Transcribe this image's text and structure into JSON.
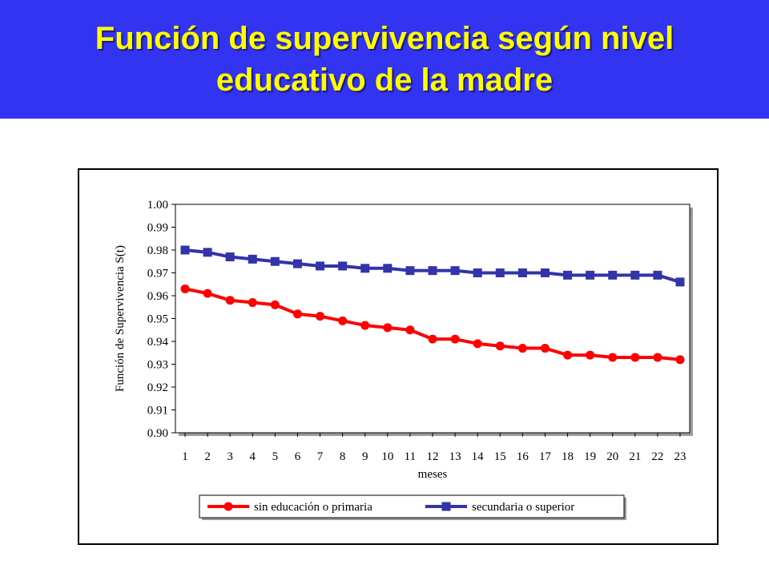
{
  "slide": {
    "title_line1": "Función de supervivencia según nivel",
    "title_line2": "educativo de la madre"
  },
  "colors": {
    "title_band": "#3333f2",
    "title_text": "#ffff00",
    "plot_area": "#ffffff",
    "series_red": "#ff0000",
    "series_blue": "#3333aa"
  },
  "chart_data": {
    "type": "line",
    "title": "",
    "xlabel": "meses",
    "ylabel": "Función de Supervivencia S(t)",
    "x": [
      1,
      2,
      3,
      4,
      5,
      6,
      7,
      8,
      9,
      10,
      11,
      12,
      13,
      14,
      15,
      16,
      17,
      18,
      19,
      20,
      21,
      22,
      23
    ],
    "ylim": [
      0.9,
      1.0
    ],
    "yticks": [
      "0.90",
      "0.91",
      "0.92",
      "0.93",
      "0.94",
      "0.95",
      "0.96",
      "0.97",
      "0.98",
      "0.99",
      "1.00"
    ],
    "grid": false,
    "legend_position": "bottom",
    "series": [
      {
        "name": "sin educación o primaria",
        "color": "#ff0000",
        "marker": "circle",
        "values": [
          0.963,
          0.961,
          0.958,
          0.957,
          0.956,
          0.952,
          0.951,
          0.949,
          0.947,
          0.946,
          0.945,
          0.941,
          0.941,
          0.939,
          0.938,
          0.937,
          0.937,
          0.934,
          0.934,
          0.933,
          0.933,
          0.933,
          0.932
        ]
      },
      {
        "name": "secundaria o superior",
        "color": "#3333aa",
        "marker": "square",
        "values": [
          0.98,
          0.979,
          0.977,
          0.976,
          0.975,
          0.974,
          0.973,
          0.973,
          0.972,
          0.972,
          0.971,
          0.971,
          0.971,
          0.97,
          0.97,
          0.97,
          0.97,
          0.969,
          0.969,
          0.969,
          0.969,
          0.969,
          0.966
        ]
      }
    ]
  }
}
